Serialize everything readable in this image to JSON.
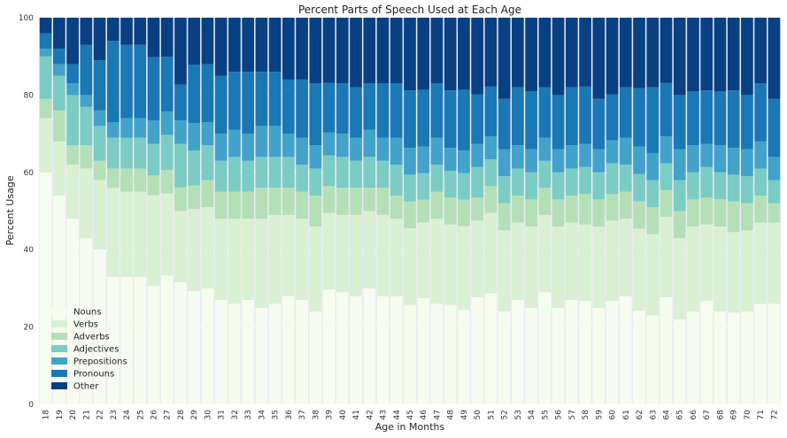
{
  "chart_data": {
    "type": "bar",
    "stacked": true,
    "title": "Percent Parts of Speech Used at Each Age",
    "xlabel": "Age in Months",
    "ylabel": "Percent Usage",
    "ylim": [
      0,
      100
    ],
    "yticks": [
      0,
      20,
      40,
      60,
      80,
      100
    ],
    "grid": true,
    "legend_position": "lower-left",
    "categories": [
      "18",
      "19",
      "20",
      "21",
      "22",
      "23",
      "24",
      "25",
      "26",
      "27",
      "28",
      "29",
      "30",
      "31",
      "32",
      "33",
      "34",
      "35",
      "36",
      "37",
      "38",
      "39",
      "40",
      "41",
      "42",
      "43",
      "44",
      "45",
      "46",
      "47",
      "48",
      "49",
      "50",
      "51",
      "52",
      "53",
      "54",
      "55",
      "56",
      "57",
      "58",
      "59",
      "60",
      "61",
      "62",
      "63",
      "64",
      "65",
      "66",
      "67",
      "68",
      "69",
      "70",
      "71",
      "72"
    ],
    "series": [
      {
        "name": "Nouns",
        "color": "#f7fcf0",
        "values": [
          60,
          54,
          48,
          43,
          40,
          33,
          33,
          33,
          30,
          33,
          31,
          29,
          30,
          27,
          26,
          27,
          25,
          26,
          28,
          27,
          24,
          30,
          29,
          28,
          30,
          28,
          28,
          26,
          28,
          26,
          26,
          25,
          28,
          29,
          24,
          27,
          25,
          29,
          25,
          27,
          27,
          25,
          27,
          28,
          24,
          23,
          28,
          22,
          24,
          27,
          24,
          24,
          24,
          26,
          26
        ]
      },
      {
        "name": "Verbs",
        "color": "#d9f0d3",
        "values": [
          14,
          14,
          14,
          18,
          18,
          23,
          22,
          22,
          23,
          21,
          18,
          21,
          21,
          21,
          22,
          21,
          23,
          23,
          21,
          21,
          22,
          20,
          20,
          21,
          20,
          21,
          20,
          20,
          20,
          22,
          21,
          22,
          20,
          21,
          21,
          20,
          21,
          20,
          21,
          20,
          20,
          21,
          21,
          20,
          21,
          21,
          21,
          21,
          22,
          20,
          22,
          21,
          21,
          21,
          21
        ]
      },
      {
        "name": "Adverbs",
        "color": "#b5e0b7",
        "values": [
          5,
          8,
          5,
          6,
          5,
          5,
          6,
          6,
          5,
          6,
          6,
          6,
          7,
          7,
          7,
          7,
          8,
          7,
          7,
          7,
          8,
          7,
          7,
          7,
          6,
          7,
          6,
          7,
          6,
          7,
          7,
          7,
          6,
          7,
          7,
          7,
          7,
          7,
          7,
          7,
          8,
          7,
          7,
          7,
          7,
          7,
          7,
          7,
          7,
          7,
          7,
          8,
          7,
          7,
          5
        ]
      },
      {
        "name": "Adjectives",
        "color": "#7bccc4",
        "values": [
          11,
          9,
          13,
          10,
          9,
          8,
          8,
          8,
          8,
          9,
          11,
          9,
          9,
          8,
          9,
          8,
          8,
          8,
          8,
          7,
          7,
          8,
          8,
          7,
          8,
          7,
          8,
          7,
          7,
          7,
          7,
          7,
          8,
          7,
          7,
          7,
          7,
          7,
          7,
          7,
          7,
          7,
          8,
          7,
          7,
          7,
          7,
          8,
          7,
          8,
          7,
          7,
          7,
          7,
          6
        ]
      },
      {
        "name": "Prepositions",
        "color": "#43a2ca",
        "values": [
          2,
          3,
          3,
          3,
          4,
          4,
          5,
          5,
          6,
          6,
          6,
          7,
          6,
          7,
          7,
          7,
          8,
          8,
          6,
          7,
          6,
          6,
          6,
          6,
          7,
          6,
          7,
          7,
          7,
          7,
          6,
          6,
          6,
          6,
          7,
          6,
          6,
          6,
          6,
          6,
          6,
          6,
          6,
          7,
          7,
          7,
          7,
          8,
          7,
          6,
          7,
          7,
          7,
          7,
          6
        ]
      },
      {
        "name": "Pronouns",
        "color": "#1a78b4",
        "values": [
          4,
          4,
          5,
          13,
          13,
          21,
          19,
          19,
          16,
          14,
          9,
          15,
          15,
          15,
          15,
          16,
          14,
          14,
          14,
          15,
          16,
          13,
          13,
          13,
          12,
          14,
          14,
          15,
          15,
          14,
          15,
          16,
          13,
          13,
          13,
          15,
          15,
          13,
          14,
          15,
          15,
          13,
          12,
          13,
          15,
          17,
          14,
          14,
          14,
          14,
          14,
          15,
          14,
          15,
          15
        ]
      },
      {
        "name": "Other",
        "color": "#084081",
        "values": [
          4,
          8,
          12,
          7,
          11,
          6,
          7,
          7,
          10,
          10,
          17,
          12,
          12,
          15,
          14,
          14,
          14,
          14,
          16,
          16,
          17,
          17,
          17,
          18,
          17,
          17,
          17,
          19,
          19,
          17,
          19,
          19,
          20,
          18,
          21,
          18,
          19,
          18,
          20,
          18,
          18,
          21,
          20,
          18,
          18,
          18,
          17,
          20,
          19,
          19,
          19,
          19,
          20,
          17,
          21
        ]
      }
    ]
  }
}
